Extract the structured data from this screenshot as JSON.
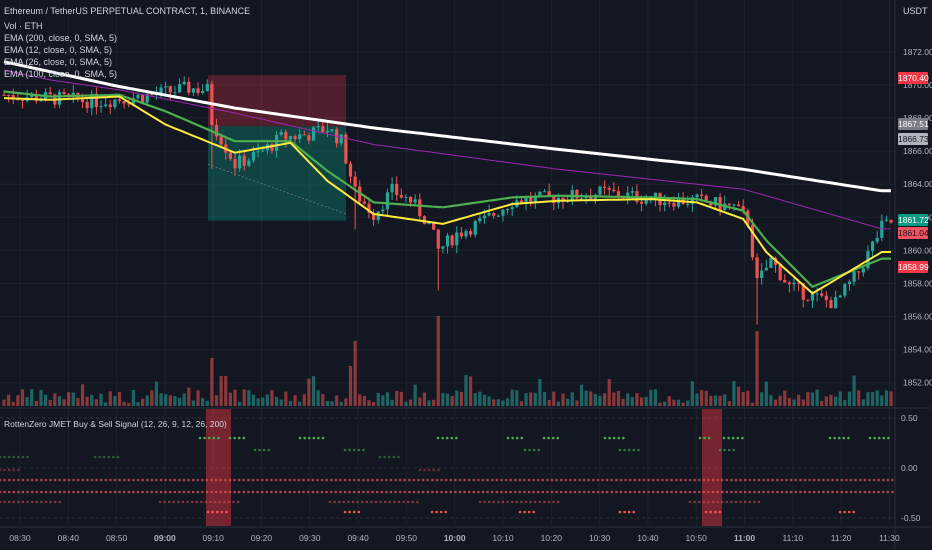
{
  "header": {
    "title": "Ethereum / TetherUS PERPETUAL CONTRACT, 1, BINANCE",
    "indicators": [
      "Vol · ETH",
      "EMA (200, close, 0, SMA, 5)",
      "EMA (12, close, 0, SMA, 5)",
      "EMA (26, close, 0, SMA, 5)",
      "EMA (100, close, 0, SMA, 5)"
    ]
  },
  "currency_label": "USDT",
  "price_axis": [
    "1872.00",
    "1870.00",
    "1868.00",
    "1866.00",
    "1864.00",
    "1862.00",
    "1860.00",
    "1858.00",
    "1856.00",
    "1854.00",
    "1852.00"
  ],
  "price_tags": [
    {
      "value": "1870.40",
      "color": "#f23645",
      "text_color": "#ffffff"
    },
    {
      "value": "1867.51",
      "color": "#787b86",
      "text_color": "#ffffff"
    },
    {
      "value": "1866.73",
      "color": "#b2b5be",
      "text_color": "#131722"
    },
    {
      "value": "1861.72",
      "color": "#089981",
      "text_color": "#ffffff"
    },
    {
      "value": "1861.04",
      "color": "#f7525f",
      "text_color": "#131722"
    },
    {
      "value": "1858.99",
      "color": "#f23645",
      "text_color": "#ffffff"
    }
  ],
  "sub_pane": {
    "title": "RottenZero JMET Buy & Sell Signal (12, 26, 9, 12, 26, 200)",
    "axis": [
      "0.50",
      "0.00",
      "-0.50"
    ]
  },
  "time_axis": [
    "08:30",
    "08:40",
    "08:50",
    "09:00",
    "09:10",
    "09:20",
    "09:30",
    "09:40",
    "09:50",
    "10:00",
    "10:10",
    "10:20",
    "10:30",
    "10:40",
    "10:50",
    "11:00",
    "11:10",
    "11:20",
    "11:30"
  ],
  "time_axis_bold": [
    "09:00",
    "10:00",
    "11:00"
  ],
  "colors": {
    "background": "#131722",
    "up": "#26a69a",
    "down": "#ef5350",
    "ema200": "#ffffff",
    "ema100": "#9c27b0",
    "ema26": "#4caf50",
    "ema12": "#ffeb3b",
    "buy_dot": "#4caf50",
    "sell_dot": "#ef5350"
  },
  "chart_data": {
    "type": "candlestick",
    "ylim": [
      1851,
      1874
    ],
    "series": [
      {
        "name": "EMA (200, close, 0, SMA, 5)",
        "x": [
          0,
          10,
          25,
          50,
          80,
          120,
          160,
          190
        ],
        "y": [
          1871.4,
          1870.8,
          1869.9,
          1868.6,
          1867.4,
          1866.1,
          1864.9,
          1863.6
        ]
      },
      {
        "name": "EMA (100, close, 0, SMA, 5)",
        "x": [
          0,
          10,
          25,
          50,
          80,
          120,
          160,
          190
        ],
        "y": [
          1870.9,
          1870.3,
          1869.7,
          1868.3,
          1866.4,
          1864.9,
          1863.7,
          1861.3
        ]
      },
      {
        "name": "EMA (26, close, 0, SMA, 5)",
        "x": [
          0,
          10,
          25,
          35,
          50,
          62,
          70,
          80,
          95,
          110,
          120,
          140,
          150,
          160,
          165,
          175,
          190
        ],
        "y": [
          1869.6,
          1869.3,
          1869.4,
          1868.4,
          1866.6,
          1866.6,
          1864.8,
          1862.9,
          1862.6,
          1863.2,
          1863.3,
          1863.2,
          1863.1,
          1862.4,
          1860.6,
          1857.8,
          1859.5
        ]
      },
      {
        "name": "EMA (12, close, 0, SMA, 5)",
        "x": [
          0,
          10,
          25,
          35,
          50,
          62,
          70,
          80,
          95,
          110,
          120,
          140,
          150,
          160,
          165,
          175,
          190
        ],
        "y": [
          1869.2,
          1869.1,
          1869.3,
          1867.6,
          1865.9,
          1866.5,
          1864.2,
          1862.2,
          1861.6,
          1862.8,
          1863.0,
          1863.1,
          1862.9,
          1861.9,
          1859.9,
          1857.4,
          1859.9
        ]
      }
    ]
  }
}
